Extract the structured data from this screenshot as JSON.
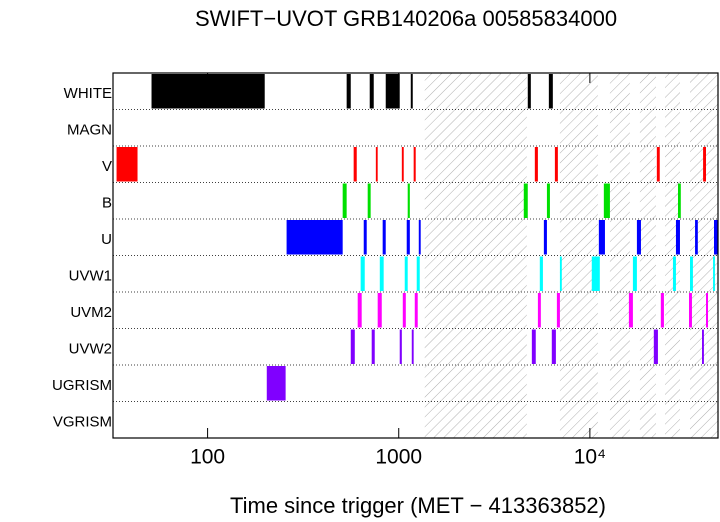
{
  "chart_data": {
    "type": "timeline",
    "title": "SWIFT−UVOT GRB140206a 00585834000",
    "x_label": "Time since trigger (MET − 413363852)",
    "xscale": "log",
    "xlim": [
      32,
      46800
    ],
    "xticks": [
      100,
      1000,
      {
        "value": 10000,
        "label": "10⁴"
      }
    ],
    "hatched": [
      [
        1368,
        4677
      ],
      [
        6970,
        11010
      ],
      [
        12730,
        16180
      ],
      [
        18270,
        22170
      ],
      [
        24720,
        29600
      ],
      [
        33400,
        46800
      ]
    ],
    "series": [
      {
        "name": "WHITE",
        "color": "#000000",
        "segments": [
          [
            50.9,
            199
          ],
          [
            534,
            561
          ],
          [
            705,
            740
          ],
          [
            855,
            1012
          ],
          [
            1156,
            1184
          ],
          [
            4732,
            4910
          ],
          [
            6100,
            6400
          ]
        ]
      },
      {
        "name": "MAGN",
        "segments": []
      },
      {
        "name": "V",
        "color": "#ff0000",
        "segments": [
          [
            33.4,
            43.0
          ],
          [
            581,
            603
          ],
          [
            759,
            776
          ],
          [
            1038,
            1062
          ],
          [
            1197,
            1227
          ],
          [
            5152,
            5346
          ],
          [
            6560,
            6800
          ],
          [
            22400,
            23200
          ],
          [
            39100,
            40500
          ]
        ]
      },
      {
        "name": "B",
        "color": "#00e000",
        "segments": [
          [
            509,
            534
          ],
          [
            688,
            713
          ],
          [
            1114,
            1143
          ],
          [
            4510,
            4732
          ],
          [
            5960,
            6180
          ],
          [
            11830,
            12730
          ],
          [
            28900,
            29900
          ]
        ]
      },
      {
        "name": "U",
        "color": "#0000ff",
        "segments": [
          [
            259,
            509
          ],
          [
            656,
            680
          ],
          [
            824,
            855
          ],
          [
            1101,
            1143
          ],
          [
            1273,
            1303
          ],
          [
            5745,
            5960
          ],
          [
            11140,
            11990
          ],
          [
            17620,
            18500
          ],
          [
            28200,
            29600
          ],
          [
            35500,
            36700
          ],
          [
            44600,
            46800
          ]
        ]
      },
      {
        "name": "UVW1",
        "color": "#00ffff",
        "segments": [
          [
            632,
            664
          ],
          [
            796,
            834
          ],
          [
            1075,
            1114
          ],
          [
            1242,
            1288
          ],
          [
            5470,
            5680
          ],
          [
            6970,
            7130
          ],
          [
            10230,
            11270
          ],
          [
            16790,
            17620
          ],
          [
            27200,
            28200
          ],
          [
            33400,
            34600
          ],
          [
            44100,
            45100
          ]
        ]
      },
      {
        "name": "UVM2",
        "color": "#ff00ff",
        "segments": [
          [
            610,
            640
          ],
          [
            776,
            815
          ],
          [
            1050,
            1089
          ],
          [
            1213,
            1257
          ],
          [
            5346,
            5540
          ],
          [
            6720,
            6970
          ],
          [
            16000,
            16790
          ],
          [
            23500,
            24400
          ],
          [
            33000,
            34200
          ],
          [
            40500,
            41500
          ]
        ]
      },
      {
        "name": "UVW2",
        "color": "#8000ff",
        "segments": [
          [
            561,
            589
          ],
          [
            722,
            749
          ],
          [
            1012,
            1038
          ],
          [
            1170,
            1197
          ],
          [
            4970,
            5210
          ],
          [
            6320,
            6640
          ],
          [
            21600,
            22700
          ],
          [
            38600,
            39500
          ]
        ]
      },
      {
        "name": "UGRISM",
        "color": "#8000ff",
        "segments": [
          [
            204,
            256
          ]
        ]
      },
      {
        "name": "VGRISM",
        "segments": []
      }
    ]
  }
}
